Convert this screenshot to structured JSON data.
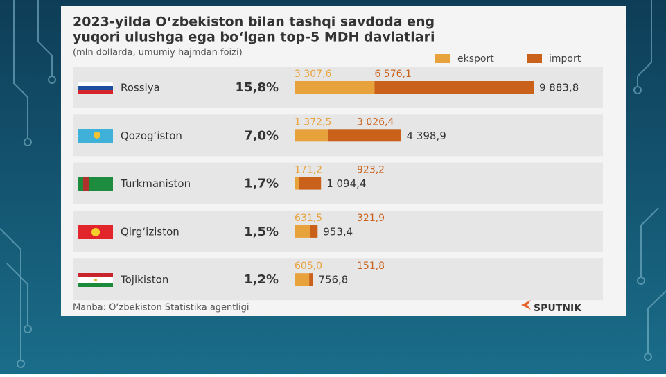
{
  "chart_data": {
    "type": "bar",
    "orientation": "horizontal",
    "stacked": true,
    "title_lines": [
      "2023-yilda O‘zbekiston bilan tashqi savdoda eng",
      "yuqori ulushga ega bo‘lgan top-5 MDH davlatlari"
    ],
    "subtitle": "(mln dollarda, umumiy hajmdan foizi)",
    "categories": [
      "Rossiya",
      "Qozog‘iston",
      "Turkmaniston",
      "Qirg‘iziston",
      "Tojikiston"
    ],
    "shares": [
      15.8,
      7.0,
      1.7,
      1.5,
      1.2
    ],
    "share_labels": [
      "15,8%",
      "7,0%",
      "1,7%",
      "1,5%",
      "1,2%"
    ],
    "series": [
      {
        "name": "eksport",
        "color": "#e8a23c",
        "values": [
          3307.6,
          1372.5,
          171.2,
          631.5,
          605.0
        ],
        "value_labels": [
          "3 307,6",
          "1 372,5",
          "171,2",
          "631,5",
          "605,0"
        ]
      },
      {
        "name": "import",
        "color": "#c9611b",
        "values": [
          6576.1,
          3026.4,
          923.2,
          321.9,
          151.8
        ],
        "value_labels": [
          "6 576,1",
          "3 026,4",
          "923,2",
          "321,9",
          "151,8"
        ]
      }
    ],
    "totals": [
      9883.8,
      4398.9,
      1094.4,
      953.4,
      756.8
    ],
    "total_labels": [
      "9 883,8",
      "4 398,9",
      "1 094,4",
      "953,4",
      "756,8"
    ],
    "source": "Manba: O‘zbekiston Statistika agentligi",
    "logo": "SPUTNIK"
  }
}
